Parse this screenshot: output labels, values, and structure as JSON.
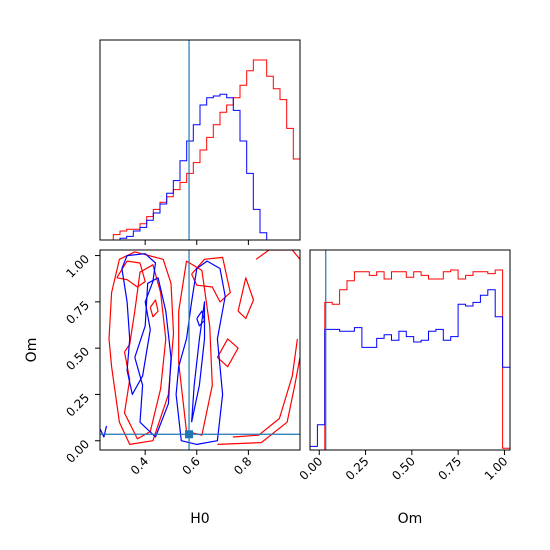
{
  "chart_data": {
    "type": "corner",
    "colors": {
      "red": "#ff0000",
      "blue": "#0000ff",
      "truth": "#1f77b4"
    },
    "truth": {
      "H0": 0.57,
      "Om": 0.035
    },
    "histograms": {
      "H0": {
        "label": "H0",
        "range": [
          0.225,
          1.0
        ],
        "bins": 30,
        "red": [
          0,
          0,
          0.03,
          0.05,
          0.06,
          0.06,
          0.09,
          0.13,
          0.17,
          0.21,
          0.24,
          0.28,
          0.32,
          0.37,
          0.43,
          0.5,
          0.57,
          0.64,
          0.71,
          0.75,
          0.79,
          0.86,
          0.94,
          1.0,
          1.0,
          0.91,
          0.84,
          0.78,
          0.62,
          0.45
        ],
        "blue": [
          0,
          0,
          0.0,
          0.01,
          0.02,
          0.05,
          0.07,
          0.11,
          0.15,
          0.2,
          0.26,
          0.33,
          0.44,
          0.55,
          0.64,
          0.75,
          0.79,
          0.8,
          0.81,
          0.79,
          0.72,
          0.55,
          0.37,
          0.17,
          0.04,
          0,
          0,
          0,
          0,
          0
        ]
      },
      "Om": {
        "label": "Om",
        "range": [
          -0.05,
          1.03
        ],
        "bins": 27,
        "red": [
          0,
          0,
          0.82,
          0.81,
          0.89,
          0.94,
          0.99,
          0.99,
          0.97,
          0.99,
          0.95,
          0.99,
          0.99,
          0.96,
          0.99,
          0.97,
          0.95,
          0.95,
          0.99,
          1.0,
          0.95,
          0.97,
          0.99,
          0.99,
          0.98,
          1.0,
          0.01
        ],
        "blue": [
          0.02,
          0.14,
          0.67,
          0.67,
          0.66,
          0.66,
          0.68,
          0.57,
          0.57,
          0.62,
          0.64,
          0.61,
          0.66,
          0.63,
          0.6,
          0.61,
          0.66,
          0.67,
          0.61,
          0.63,
          0.81,
          0.8,
          0.82,
          0.86,
          0.89,
          0.74,
          0.46
        ]
      }
    },
    "contour": {
      "xlabel": "H0",
      "ylabel": "Om",
      "xlim": [
        0.225,
        1.0
      ],
      "ylim": [
        -0.05,
        1.03
      ],
      "xticks": [
        0.4,
        0.6,
        0.8
      ],
      "yticks": [
        0.0,
        0.25,
        0.5,
        0.75,
        1.0
      ],
      "red": [
        [
          [
            0.29,
            0.88
          ],
          [
            0.33,
            0.97
          ],
          [
            0.38,
            0.96
          ],
          [
            0.4,
            0.86
          ],
          [
            0.37,
            0.83
          ],
          [
            0.33,
            0.87
          ],
          [
            0.29,
            0.88
          ]
        ],
        [
          [
            0.32,
            0.48
          ],
          [
            0.34,
            0.33
          ],
          [
            0.32,
            0.15
          ],
          [
            0.37,
            0.01
          ],
          [
            0.42,
            0.05
          ],
          [
            0.46,
            0.28
          ],
          [
            0.48,
            0.55
          ],
          [
            0.46,
            0.8
          ],
          [
            0.43,
            0.95
          ],
          [
            0.38,
            0.91
          ],
          [
            0.36,
            0.7
          ],
          [
            0.34,
            0.52
          ],
          [
            0.32,
            0.48
          ]
        ],
        [
          [
            0.27,
            0.4
          ],
          [
            0.3,
            0.1
          ],
          [
            0.34,
            -0.02
          ],
          [
            0.43,
            0.0
          ],
          [
            0.49,
            0.25
          ],
          [
            0.51,
            0.58
          ],
          [
            0.5,
            0.85
          ],
          [
            0.47,
            0.98
          ],
          [
            0.36,
            1.02
          ],
          [
            0.3,
            0.98
          ],
          [
            0.27,
            0.8
          ],
          [
            0.26,
            0.55
          ],
          [
            0.27,
            0.4
          ]
        ],
        [
          [
            0.53,
            0.42
          ],
          [
            0.56,
            0.05
          ],
          [
            0.62,
            0.03
          ],
          [
            0.66,
            0.3
          ],
          [
            0.65,
            0.62
          ],
          [
            0.62,
            0.92
          ],
          [
            0.56,
            0.97
          ],
          [
            0.53,
            0.7
          ],
          [
            0.53,
            0.42
          ]
        ],
        [
          [
            0.58,
            0.9
          ],
          [
            0.63,
            0.98
          ],
          [
            0.7,
            0.99
          ],
          [
            0.73,
            0.8
          ],
          [
            0.69,
            0.75
          ],
          [
            0.66,
            0.83
          ],
          [
            0.6,
            0.84
          ],
          [
            0.58,
            0.9
          ]
        ],
        [
          [
            0.68,
            0.45
          ],
          [
            0.72,
            0.55
          ],
          [
            0.76,
            0.5
          ],
          [
            0.72,
            0.4
          ],
          [
            0.68,
            0.45
          ]
        ],
        [
          [
            0.74,
            0.02
          ],
          [
            0.84,
            0.03
          ],
          [
            0.92,
            0.12
          ],
          [
            0.97,
            0.35
          ],
          [
            0.99,
            0.55
          ]
        ],
        [
          [
            0.68,
            -0.02
          ],
          [
            0.85,
            -0.01
          ],
          [
            0.95,
            0.1
          ],
          [
            0.98,
            0.3
          ],
          [
            1.0,
            0.45
          ]
        ],
        [
          [
            0.76,
            0.7
          ],
          [
            0.79,
            0.88
          ],
          [
            0.82,
            0.76
          ],
          [
            0.79,
            0.66
          ],
          [
            0.76,
            0.7
          ]
        ],
        [
          [
            0.83,
            0.98
          ],
          [
            0.88,
            1.03
          ],
          [
            0.97,
            1.03
          ],
          [
            1.0,
            0.98
          ]
        ],
        [
          [
            0.42,
            0.72
          ],
          [
            0.44,
            0.76
          ],
          [
            0.45,
            0.7
          ],
          [
            0.43,
            0.67
          ],
          [
            0.42,
            0.72
          ]
        ]
      ],
      "blue": [
        [
          [
            0.31,
            0.93
          ],
          [
            0.33,
            1.0
          ],
          [
            0.4,
            1.01
          ],
          [
            0.44,
            0.96
          ],
          [
            0.43,
            0.86
          ],
          [
            0.4,
            0.75
          ],
          [
            0.42,
            0.6
          ],
          [
            0.39,
            0.35
          ],
          [
            0.35,
            0.25
          ],
          [
            0.33,
            0.38
          ],
          [
            0.34,
            0.55
          ],
          [
            0.33,
            0.75
          ],
          [
            0.31,
            0.93
          ]
        ],
        [
          [
            0.36,
            0.45
          ],
          [
            0.39,
            0.3
          ],
          [
            0.38,
            0.1
          ],
          [
            0.44,
            0.02
          ],
          [
            0.49,
            0.2
          ],
          [
            0.5,
            0.45
          ],
          [
            0.48,
            0.7
          ],
          [
            0.45,
            0.88
          ],
          [
            0.41,
            0.85
          ],
          [
            0.4,
            0.62
          ],
          [
            0.36,
            0.45
          ]
        ],
        [
          [
            0.52,
            0.25
          ],
          [
            0.54,
            0.0
          ],
          [
            0.6,
            -0.02
          ],
          [
            0.68,
            0.0
          ],
          [
            0.7,
            0.25
          ],
          [
            0.68,
            0.55
          ],
          [
            0.71,
            0.78
          ],
          [
            0.69,
            0.93
          ],
          [
            0.64,
            0.97
          ],
          [
            0.6,
            0.93
          ],
          [
            0.58,
            0.75
          ],
          [
            0.56,
            0.55
          ],
          [
            0.53,
            0.4
          ],
          [
            0.52,
            0.25
          ]
        ],
        [
          [
            0.58,
            0.1
          ],
          [
            0.61,
            0.3
          ],
          [
            0.63,
            0.55
          ],
          [
            0.63,
            0.75
          ],
          [
            0.61,
            0.55
          ],
          [
            0.59,
            0.3
          ],
          [
            0.58,
            0.1
          ]
        ],
        [
          [
            0.6,
            0.66
          ],
          [
            0.62,
            0.7
          ],
          [
            0.63,
            0.65
          ],
          [
            0.61,
            0.62
          ],
          [
            0.6,
            0.66
          ]
        ],
        [
          [
            0.22,
            0.08
          ],
          [
            0.24,
            0.02
          ],
          [
            0.25,
            0.08
          ]
        ]
      ]
    }
  }
}
